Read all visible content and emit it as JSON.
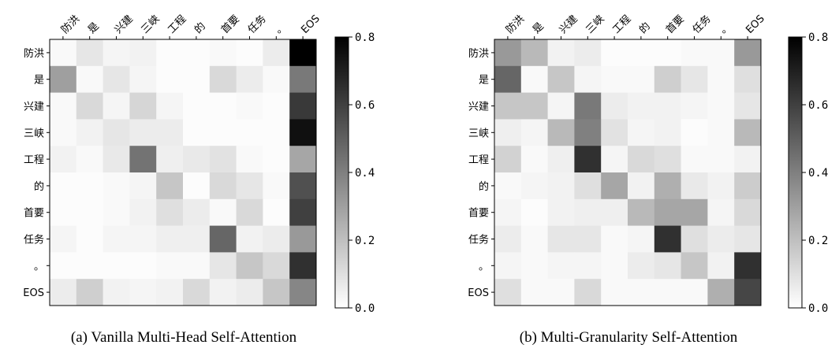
{
  "chart_data": [
    {
      "type": "heatmap",
      "caption": "(a) Vanilla Multi-Head Self-Attention",
      "x_tick_labels": [
        "防洪",
        "是",
        "兴建",
        "三峡",
        "工程",
        "的",
        "首要",
        "任务",
        "。",
        "EOS"
      ],
      "y_tick_labels": [
        "防洪",
        "是",
        "兴建",
        "三峡",
        "工程",
        "的",
        "首要",
        "任务",
        "。",
        "EOS"
      ],
      "colorbar": {
        "min": 0.0,
        "max": 0.8,
        "ticks": [
          "0.0",
          "0.2",
          "0.4",
          "0.6",
          "0.8"
        ],
        "colormap": "Greys"
      },
      "values": [
        [
          0.02,
          0.08,
          0.03,
          0.04,
          0.01,
          0.01,
          0.02,
          0.01,
          0.06,
          0.8
        ],
        [
          0.3,
          0.02,
          0.08,
          0.03,
          0.01,
          0.01,
          0.12,
          0.06,
          0.02,
          0.42
        ],
        [
          0.02,
          0.12,
          0.03,
          0.13,
          0.03,
          0.01,
          0.01,
          0.02,
          0.01,
          0.62
        ],
        [
          0.02,
          0.04,
          0.08,
          0.06,
          0.06,
          0.01,
          0.01,
          0.01,
          0.01,
          0.75
        ],
        [
          0.04,
          0.02,
          0.07,
          0.44,
          0.05,
          0.07,
          0.09,
          0.02,
          0.01,
          0.28
        ],
        [
          0.01,
          0.01,
          0.02,
          0.03,
          0.18,
          0.01,
          0.12,
          0.08,
          0.02,
          0.55
        ],
        [
          0.01,
          0.01,
          0.02,
          0.04,
          0.1,
          0.06,
          0.02,
          0.12,
          0.01,
          0.6
        ],
        [
          0.03,
          0.01,
          0.03,
          0.03,
          0.05,
          0.05,
          0.48,
          0.04,
          0.06,
          0.32
        ],
        [
          0.01,
          0.01,
          0.01,
          0.01,
          0.02,
          0.02,
          0.08,
          0.18,
          0.12,
          0.65
        ],
        [
          0.06,
          0.15,
          0.04,
          0.03,
          0.04,
          0.12,
          0.04,
          0.06,
          0.18,
          0.38
        ]
      ]
    },
    {
      "type": "heatmap",
      "caption": "(b) Multi-Granularity Self-Attention",
      "x_tick_labels": [
        "防洪",
        "是",
        "兴建",
        "三峡",
        "工程",
        "的",
        "首要",
        "任务",
        "。",
        "EOS"
      ],
      "y_tick_labels": [
        "防洪",
        "是",
        "兴建",
        "三峡",
        "工程",
        "的",
        "首要",
        "任务",
        "。",
        "EOS"
      ],
      "colorbar": {
        "min": 0.0,
        "max": 0.8,
        "ticks": [
          "0.0",
          "0.2",
          "0.4",
          "0.6",
          "0.8"
        ],
        "colormap": "Greys"
      },
      "values": [
        [
          0.32,
          0.22,
          0.04,
          0.06,
          0.01,
          0.01,
          0.01,
          0.02,
          0.02,
          0.32
        ],
        [
          0.48,
          0.02,
          0.18,
          0.03,
          0.02,
          0.02,
          0.15,
          0.08,
          0.02,
          0.1
        ],
        [
          0.18,
          0.18,
          0.03,
          0.42,
          0.06,
          0.04,
          0.04,
          0.03,
          0.02,
          0.08
        ],
        [
          0.05,
          0.03,
          0.22,
          0.4,
          0.09,
          0.03,
          0.04,
          0.01,
          0.02,
          0.22
        ],
        [
          0.14,
          0.02,
          0.05,
          0.65,
          0.03,
          0.12,
          0.1,
          0.02,
          0.02,
          0.04
        ],
        [
          0.02,
          0.03,
          0.04,
          0.1,
          0.28,
          0.04,
          0.25,
          0.07,
          0.04,
          0.16
        ],
        [
          0.03,
          0.01,
          0.04,
          0.05,
          0.05,
          0.22,
          0.28,
          0.28,
          0.03,
          0.12
        ],
        [
          0.06,
          0.02,
          0.08,
          0.08,
          0.02,
          0.03,
          0.65,
          0.1,
          0.06,
          0.08
        ],
        [
          0.03,
          0.02,
          0.03,
          0.03,
          0.02,
          0.06,
          0.08,
          0.18,
          0.04,
          0.65
        ],
        [
          0.1,
          0.02,
          0.02,
          0.12,
          0.02,
          0.02,
          0.02,
          0.02,
          0.25,
          0.58
        ]
      ]
    }
  ]
}
